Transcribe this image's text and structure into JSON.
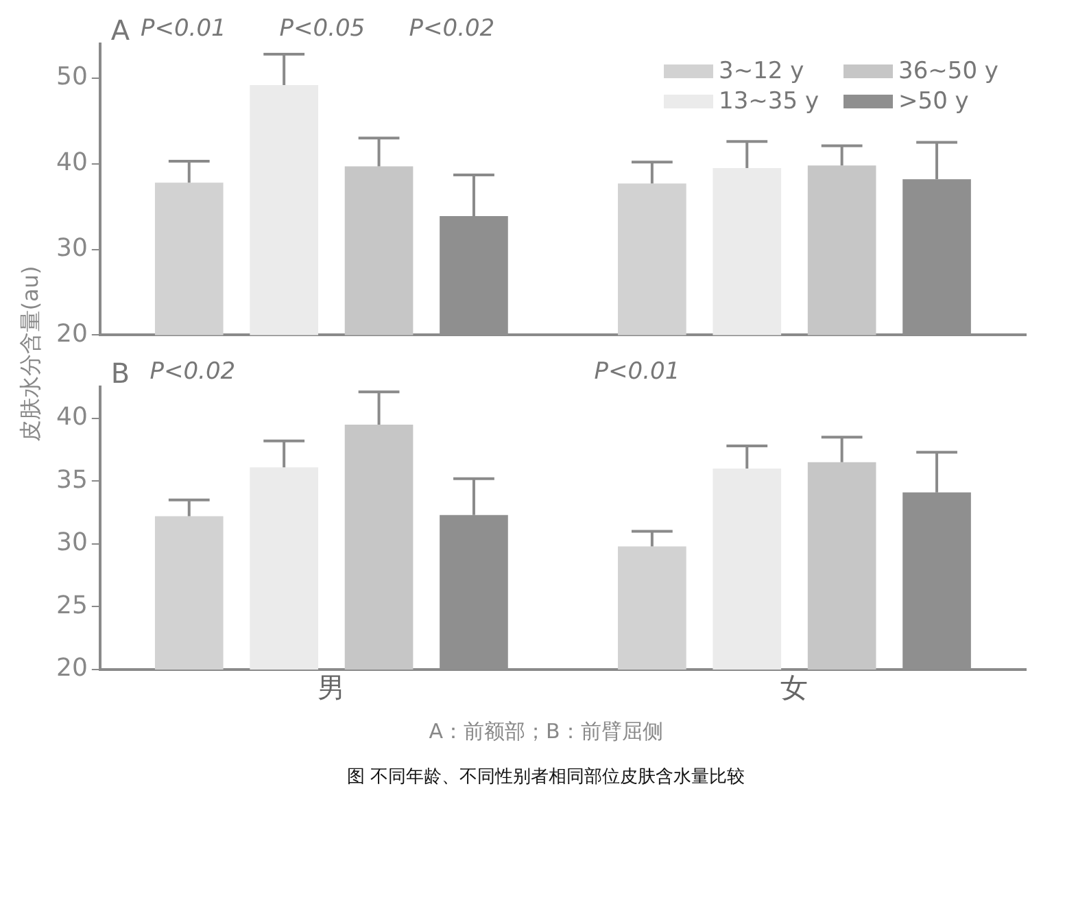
{
  "chart_data": [
    {
      "type": "bar",
      "ylabel": "皮肤水分含量(au)",
      "categories": [
        null,
        null
      ],
      "ylim": [
        20,
        54
      ],
      "yticks": [
        20,
        30,
        40,
        50
      ],
      "tick_labels": "y",
      "grid": false,
      "legend": "top right",
      "annotations": [
        "A",
        "P<0.01",
        "P<0.05",
        "P<0.02"
      ],
      "series": [
        {
          "name": "3~12 y",
          "color": "#d2d2d2",
          "values": [
            37.8,
            37.7
          ],
          "errors": [
            [
              37.8,
              40.3
            ],
            [
              37.7,
              40.2
            ]
          ]
        },
        {
          "name": "13~35 y",
          "color": "#ebebeb",
          "values": [
            49.2,
            39.5
          ],
          "errors": [
            [
              49.2,
              52.8
            ],
            [
              39.5,
              42.6
            ]
          ]
        },
        {
          "name": "36~50 y",
          "color": "#c6c6c6",
          "values": [
            39.7,
            39.8
          ],
          "errors": [
            [
              39.7,
              43
            ],
            [
              39.8,
              42.1
            ]
          ]
        },
        {
          "name": ">50 y",
          "color": "#8f8f8f",
          "values": [
            33.9,
            38.2
          ],
          "errors": [
            [
              33.9,
              38.7
            ],
            [
              38.2,
              42.5
            ]
          ]
        }
      ]
    },
    {
      "type": "bar",
      "title": "图 不同年龄、不同性别者相同部位皮肤含水量比较",
      "xlabel": "A：前额部；B：前臂屈侧",
      "categories": [
        "男",
        "女"
      ],
      "ylim": [
        20,
        42.5
      ],
      "yticks": [
        20,
        25,
        30,
        35,
        40
      ],
      "grid": false,
      "annotations": [
        "B",
        "P<0.02",
        "P<0.01"
      ],
      "series": [
        {
          "color": "#d2d2d2",
          "values": [
            32.2,
            29.8
          ],
          "errors": [
            [
              32.2,
              33.5
            ],
            [
              29.8,
              31
            ]
          ]
        },
        {
          "color": "#ebebeb",
          "values": [
            36.1,
            36
          ],
          "errors": [
            [
              36.1,
              38.2
            ],
            [
              36,
              37.8
            ]
          ]
        },
        {
          "color": "#c6c6c6",
          "values": [
            39.5,
            36.5
          ],
          "errors": [
            [
              39.5,
              42.1
            ],
            [
              36.5,
              38.5
            ]
          ]
        },
        {
          "color": "#8f8f8f",
          "values": [
            32.3,
            34.1
          ],
          "errors": [
            [
              32.3,
              35.2
            ],
            [
              34.1,
              37.3
            ]
          ]
        }
      ]
    }
  ]
}
